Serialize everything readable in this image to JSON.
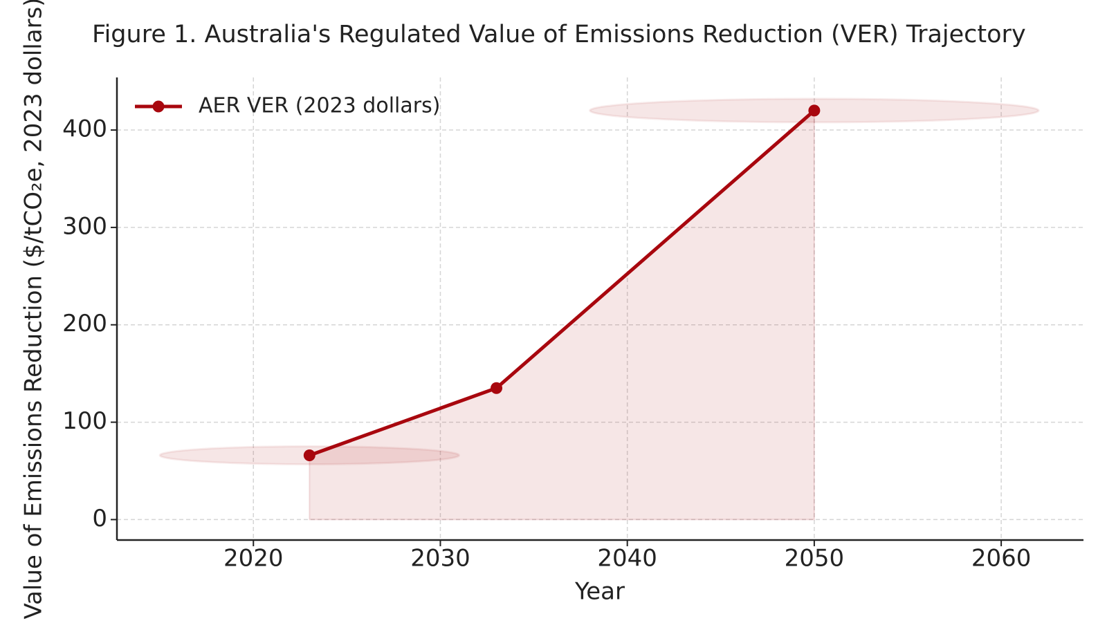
{
  "chart_data": {
    "type": "line",
    "title": "Figure 1. Australia's Regulated Value of Emissions Reduction (VER) Trajectory",
    "x_label": "Year",
    "y_label": "Value of Emissions Reduction ($/tCO₂e, 2023 dollars)",
    "x": [
      2023,
      2033,
      2050
    ],
    "series": [
      {
        "name": "AER VER (2023 dollars)",
        "color": "#a8070e",
        "values": [
          66,
          135,
          420
        ]
      }
    ],
    "xlim": [
      2012.7,
      2064.4
    ],
    "xticks": [
      2020,
      2030,
      2040,
      2050,
      2060
    ],
    "ylim": [
      -21,
      454
    ],
    "yticks": [
      0,
      100,
      200,
      300,
      400
    ],
    "grid": true,
    "legend": "upper left",
    "fill_area": true
  }
}
